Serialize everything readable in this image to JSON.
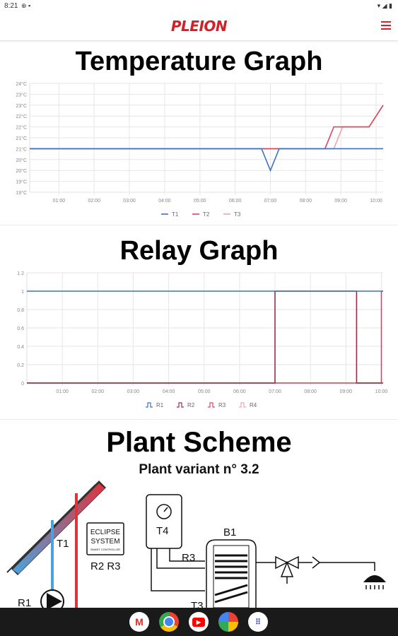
{
  "status_bar": {
    "time": "8:21"
  },
  "app": {
    "logo": "PLEION"
  },
  "temperature_graph": {
    "title": "Temperature Graph",
    "legend": [
      "T1",
      "T2",
      "T3"
    ]
  },
  "relay_graph": {
    "title": "Relay Graph",
    "legend": [
      "R1",
      "R2",
      "R3",
      "R4"
    ]
  },
  "plant_scheme": {
    "title": "Plant Scheme",
    "variant": "Plant variant n° 3.2",
    "controller_lines": [
      "ECLIPSE",
      "SYSTEM",
      "SMART CONTROLLER"
    ],
    "labels": {
      "t1": "T1",
      "t3": "T3",
      "t4": "T4",
      "r1": "R1",
      "r2r3": "R2 R3",
      "r3": "R3",
      "b1": "B1"
    }
  },
  "colors": {
    "brand": "#d42027",
    "t1": "#3d74c2",
    "t2": "#d8485a",
    "t3": "#f2a3ad"
  },
  "nav_apps": [
    "gmail-icon",
    "chrome-icon",
    "youtube-icon",
    "photos-icon",
    "apps-icon"
  ],
  "chart_data": [
    {
      "type": "line",
      "title": "Temperature Graph",
      "x_ticks": [
        "01:00",
        "02:00",
        "03:00",
        "04:00",
        "05:00",
        "06:00",
        "07:00",
        "08:00",
        "09:00",
        "10:00"
      ],
      "y_ticks": [
        "19°C",
        "19°C",
        "20°C",
        "20°C",
        "21°C",
        "21°C",
        "22°C",
        "22°C",
        "23°C",
        "23°C",
        "24°C"
      ],
      "ylim": [
        19,
        24
      ],
      "xlim": [
        0.17,
        10.2
      ],
      "grid": true,
      "legend_position": "bottom",
      "series": [
        {
          "name": "T1",
          "color": "#3d74c2",
          "points": [
            [
              0.17,
              21
            ],
            [
              6.75,
              21
            ],
            [
              7.0,
              20
            ],
            [
              7.25,
              21
            ],
            [
              10.2,
              21
            ]
          ]
        },
        {
          "name": "T2",
          "color": "#d8485a",
          "points": [
            [
              0.17,
              21
            ],
            [
              8.55,
              21
            ],
            [
              8.8,
              22
            ],
            [
              9.8,
              22
            ],
            [
              10.2,
              23
            ]
          ]
        },
        {
          "name": "T3",
          "color": "#f2a3ad",
          "points": [
            [
              0.17,
              21
            ],
            [
              8.8,
              21
            ],
            [
              9.05,
              22
            ],
            [
              9.8,
              22
            ],
            [
              10.2,
              23
            ]
          ]
        }
      ]
    },
    {
      "type": "line",
      "title": "Relay Graph",
      "x_ticks": [
        "01:00",
        "02:00",
        "03:00",
        "04:00",
        "05:00",
        "06:00",
        "07:00",
        "08:00",
        "09:00",
        "10:00"
      ],
      "y_ticks": [
        "0",
        "0.2",
        "0.4",
        "0.6",
        "0.8",
        "1",
        "1.2"
      ],
      "ylim": [
        0,
        1.2
      ],
      "xlim": [
        0.0,
        10.05
      ],
      "grid": true,
      "legend_position": "bottom",
      "series": [
        {
          "name": "R1",
          "color": "#3d74c2",
          "points": [
            [
              0.0,
              1
            ],
            [
              10.05,
              1
            ]
          ]
        },
        {
          "name": "R2",
          "color": "#9b2d4a",
          "points": [
            [
              0.0,
              0
            ],
            [
              7.0,
              0
            ],
            [
              7.0,
              1
            ],
            [
              9.3,
              1
            ],
            [
              9.3,
              0
            ],
            [
              10.05,
              0
            ]
          ]
        },
        {
          "name": "R3",
          "color": "#d8485a",
          "points": [
            [
              0.0,
              0
            ],
            [
              10.0,
              0
            ],
            [
              10.0,
              1
            ],
            [
              10.05,
              1
            ]
          ]
        },
        {
          "name": "R4",
          "color": "#f2a3ad",
          "points": [
            [
              0.0,
              0
            ],
            [
              10.05,
              0
            ]
          ]
        }
      ]
    }
  ]
}
